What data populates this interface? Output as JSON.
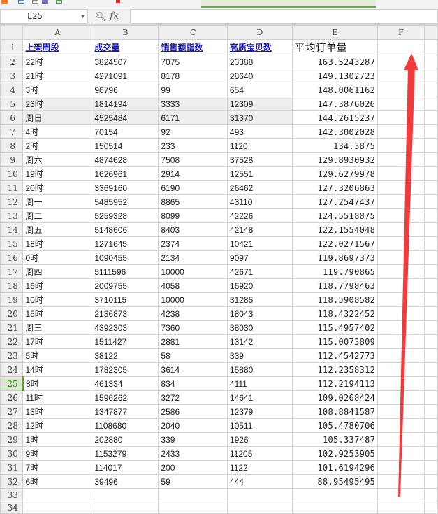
{
  "formula_bar": {
    "name_box": "L25",
    "fx_label": "fx",
    "formula": ""
  },
  "columns": [
    "A",
    "B",
    "C",
    "D",
    "E",
    "F",
    ""
  ],
  "header_row": {
    "row": "1",
    "cells": [
      "上架周段",
      "成交量",
      "销售额指数",
      "高质宝贝数",
      "平均订单量",
      ""
    ]
  },
  "rows": [
    {
      "row": "2",
      "cells": [
        "22时",
        "3824507",
        "7075",
        "23388",
        "163.5243287"
      ]
    },
    {
      "row": "3",
      "cells": [
        "21时",
        "4271091",
        "8178",
        "28640",
        "149.1302723"
      ]
    },
    {
      "row": "4",
      "cells": [
        "3时",
        "96796",
        "99",
        "654",
        "148.0061162"
      ]
    },
    {
      "row": "5",
      "cells": [
        "23时",
        "1814194",
        "3333",
        "12309",
        "147.3876026"
      ]
    },
    {
      "row": "6",
      "cells": [
        "周日",
        "4525484",
        "6171",
        "31370",
        "144.2615237"
      ]
    },
    {
      "row": "7",
      "cells": [
        "4时",
        "70154",
        "92",
        "493",
        "142.3002028"
      ]
    },
    {
      "row": "8",
      "cells": [
        "2时",
        "150514",
        "233",
        "1120",
        "134.3875"
      ]
    },
    {
      "row": "9",
      "cells": [
        "周六",
        "4874628",
        "7508",
        "37528",
        "129.8930932"
      ]
    },
    {
      "row": "10",
      "cells": [
        "19时",
        "1626961",
        "2914",
        "12551",
        "129.6279978"
      ]
    },
    {
      "row": "11",
      "cells": [
        "20时",
        "3369160",
        "6190",
        "26462",
        "127.3206863"
      ]
    },
    {
      "row": "12",
      "cells": [
        "周一",
        "5485952",
        "8865",
        "43110",
        "127.2547437"
      ]
    },
    {
      "row": "13",
      "cells": [
        "周二",
        "5259328",
        "8099",
        "42226",
        "124.5518875"
      ]
    },
    {
      "row": "14",
      "cells": [
        "周五",
        "5148606",
        "8403",
        "42148",
        "122.1554048"
      ]
    },
    {
      "row": "15",
      "cells": [
        "18时",
        "1271645",
        "2374",
        "10421",
        "122.0271567"
      ]
    },
    {
      "row": "16",
      "cells": [
        "0时",
        "1090455",
        "2134",
        "9097",
        "119.8697373"
      ]
    },
    {
      "row": "17",
      "cells": [
        "周四",
        "5111596",
        "10000",
        "42671",
        "119.790865"
      ]
    },
    {
      "row": "18",
      "cells": [
        "16时",
        "2009755",
        "4058",
        "16920",
        "118.7798463"
      ]
    },
    {
      "row": "19",
      "cells": [
        "10时",
        "3710115",
        "10000",
        "31285",
        "118.5908582"
      ]
    },
    {
      "row": "20",
      "cells": [
        "15时",
        "2136873",
        "4238",
        "18043",
        "118.4322452"
      ]
    },
    {
      "row": "21",
      "cells": [
        "周三",
        "4392303",
        "7360",
        "38030",
        "115.4957402"
      ]
    },
    {
      "row": "22",
      "cells": [
        "17时",
        "1511427",
        "2881",
        "13142",
        "115.0073809"
      ]
    },
    {
      "row": "23",
      "cells": [
        "5时",
        "38122",
        "58",
        "339",
        "112.4542773"
      ]
    },
    {
      "row": "24",
      "cells": [
        "14时",
        "1782305",
        "3614",
        "15880",
        "112.2358312"
      ]
    },
    {
      "row": "25",
      "cells": [
        "8时",
        "461334",
        "834",
        "4111",
        "112.2194113"
      ]
    },
    {
      "row": "26",
      "cells": [
        "11时",
        "1596262",
        "3272",
        "14641",
        "109.0268424"
      ]
    },
    {
      "row": "27",
      "cells": [
        "13时",
        "1347877",
        "2586",
        "12379",
        "108.8841587"
      ]
    },
    {
      "row": "28",
      "cells": [
        "12时",
        "1108680",
        "2040",
        "10511",
        "105.4780706"
      ]
    },
    {
      "row": "29",
      "cells": [
        "1时",
        "202880",
        "339",
        "1926",
        "105.337487"
      ]
    },
    {
      "row": "30",
      "cells": [
        "9时",
        "1153279",
        "2433",
        "11205",
        "102.9253905"
      ]
    },
    {
      "row": "31",
      "cells": [
        "7时",
        "114017",
        "200",
        "1122",
        "101.6194296"
      ]
    },
    {
      "row": "32",
      "cells": [
        "6时",
        "39496",
        "59",
        "444",
        "88.95495495"
      ]
    }
  ],
  "empty_rows": [
    "33",
    "34"
  ],
  "selected_row": "25",
  "highlighted_rows": [
    "5",
    "6"
  ],
  "annotation": {
    "type": "red-arrow-up",
    "color": "#f03c3c"
  }
}
